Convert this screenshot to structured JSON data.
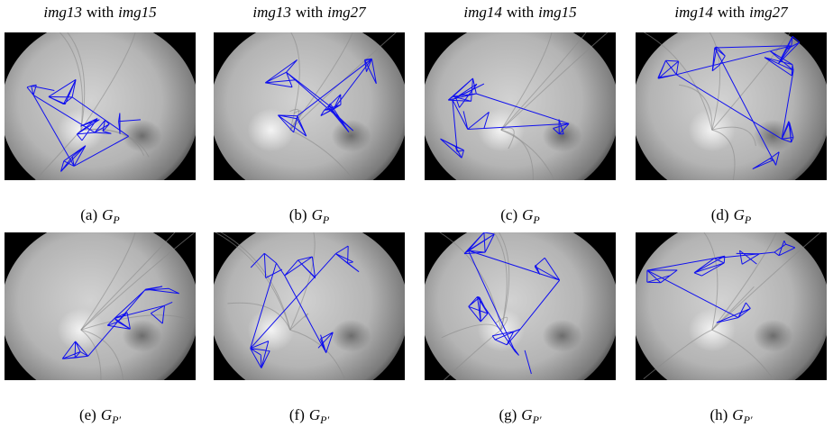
{
  "columns": [
    {
      "left": "img13",
      "joiner": "with",
      "right": "img15"
    },
    {
      "left": "img13",
      "joiner": "with",
      "right": "img27"
    },
    {
      "left": "img14",
      "joiner": "with",
      "right": "img15"
    },
    {
      "left": "img14",
      "joiner": "with",
      "right": "img27"
    }
  ],
  "panels": [
    {
      "label": "(a)",
      "symbol": "G",
      "subscript": "P"
    },
    {
      "label": "(b)",
      "symbol": "G",
      "subscript": "P"
    },
    {
      "label": "(c)",
      "symbol": "G",
      "subscript": "P"
    },
    {
      "label": "(d)",
      "symbol": "G",
      "subscript": "P"
    },
    {
      "label": "(e)",
      "symbol": "G",
      "subscript": "P′"
    },
    {
      "label": "(f)",
      "symbol": "G",
      "subscript": "P′"
    },
    {
      "label": "(g)",
      "symbol": "G",
      "subscript": "P′"
    },
    {
      "label": "(h)",
      "symbol": "G",
      "subscript": "P′"
    }
  ]
}
